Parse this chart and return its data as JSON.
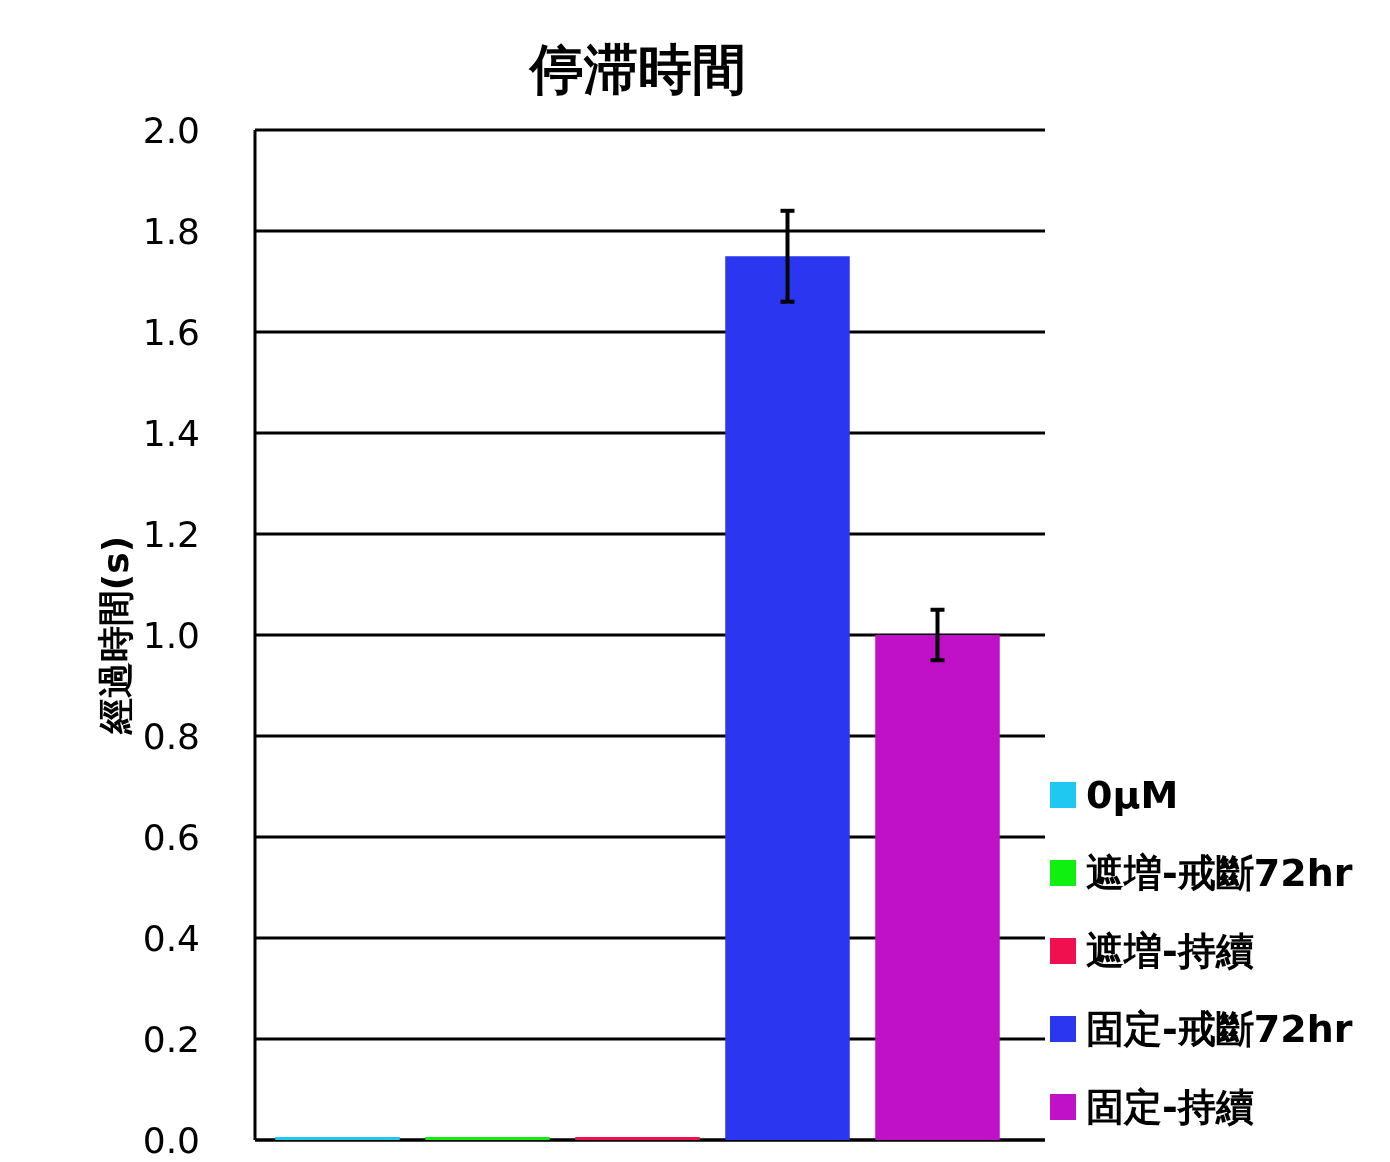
{
  "chart_data": {
    "type": "bar",
    "title": "停滞時間",
    "ylabel": "經過時間(s)",
    "categories": [
      null
    ],
    "series": [
      {
        "name": "0μM",
        "color": "#1ec8f0",
        "values": [
          0
        ]
      },
      {
        "name": "遮増-戒斷72hr",
        "color": "#10f010",
        "values": [
          0
        ]
      },
      {
        "name": "遮増-持續",
        "color": "#f01050",
        "values": [
          0
        ]
      },
      {
        "name": "固定-戒斷72hr",
        "color": "#2a36f0",
        "values": [
          1.75
        ],
        "errors": [
          0.09
        ]
      },
      {
        "name": "固定-持續",
        "color": "#c010c8",
        "values": [
          1.0
        ],
        "errors": [
          0.05
        ]
      }
    ],
    "ylim": [
      0,
      2
    ],
    "yticks": [
      {
        "value": 0,
        "label": "0.0"
      },
      0.2,
      0.4,
      0.6,
      0.8,
      {
        "value": 1,
        "label": "1.0"
      },
      1.2,
      1.4,
      1.6,
      1.8,
      {
        "value": 2,
        "label": "2.0"
      }
    ],
    "grid": "y",
    "legend": "right"
  }
}
